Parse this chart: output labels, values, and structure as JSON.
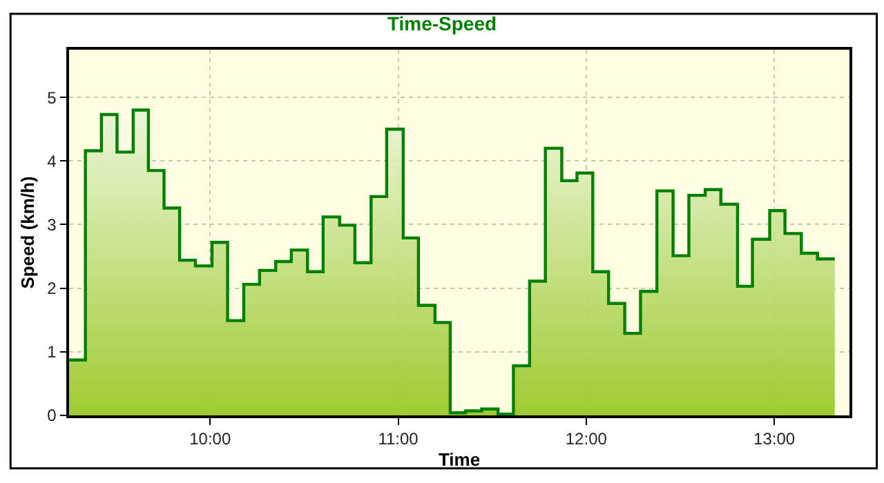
{
  "chart_data": {
    "type": "step",
    "title": "Time-Speed",
    "xlabel": "Time",
    "ylabel": "Speed (km/h)",
    "x": [
      9.25,
      9.337,
      9.422,
      9.505,
      9.591,
      9.672,
      9.755,
      9.838,
      9.922,
      10.01,
      10.093,
      10.179,
      10.263,
      10.349,
      10.432,
      10.518,
      10.601,
      10.689,
      10.77,
      10.856,
      10.939,
      11.027,
      11.108,
      11.196,
      11.277,
      11.358,
      11.444,
      11.531,
      11.613,
      11.699,
      11.783,
      11.87,
      11.951,
      12.035,
      12.119,
      12.205,
      12.289,
      12.376,
      12.462,
      12.546,
      12.633,
      12.716,
      12.805,
      12.884,
      12.976,
      13.057,
      13.144,
      13.23,
      13.322
    ],
    "series": [
      {
        "color": "#008000",
        "values": [
          0.87,
          4.16,
          4.73,
          4.14,
          4.8,
          3.85,
          3.26,
          2.44,
          2.35,
          2.72,
          1.49,
          2.06,
          2.28,
          2.42,
          2.6,
          2.26,
          3.12,
          2.99,
          2.4,
          3.44,
          4.5,
          2.79,
          1.73,
          1.46,
          0.04,
          0.07,
          0.1,
          0.02,
          0.78,
          2.11,
          4.2,
          3.69,
          3.81,
          2.26,
          1.76,
          1.29,
          1.95,
          3.53,
          2.51,
          3.46,
          3.55,
          3.32,
          2.03,
          2.77,
          3.22,
          2.86,
          2.55,
          2.46,
          2.46
        ]
      }
    ],
    "xlim": [
      9.25,
      13.4
    ],
    "xticks": [
      {
        "value": 10,
        "label": "10:00"
      },
      {
        "value": 11,
        "label": "11:00"
      },
      {
        "value": 12,
        "label": "12:00"
      },
      {
        "value": 13,
        "label": "13:00"
      }
    ],
    "ylim": [
      0,
      5.75
    ],
    "yticks": [
      0,
      1,
      2,
      3,
      4,
      5
    ],
    "grid": true,
    "marker": "none",
    "line_style": "solid"
  }
}
